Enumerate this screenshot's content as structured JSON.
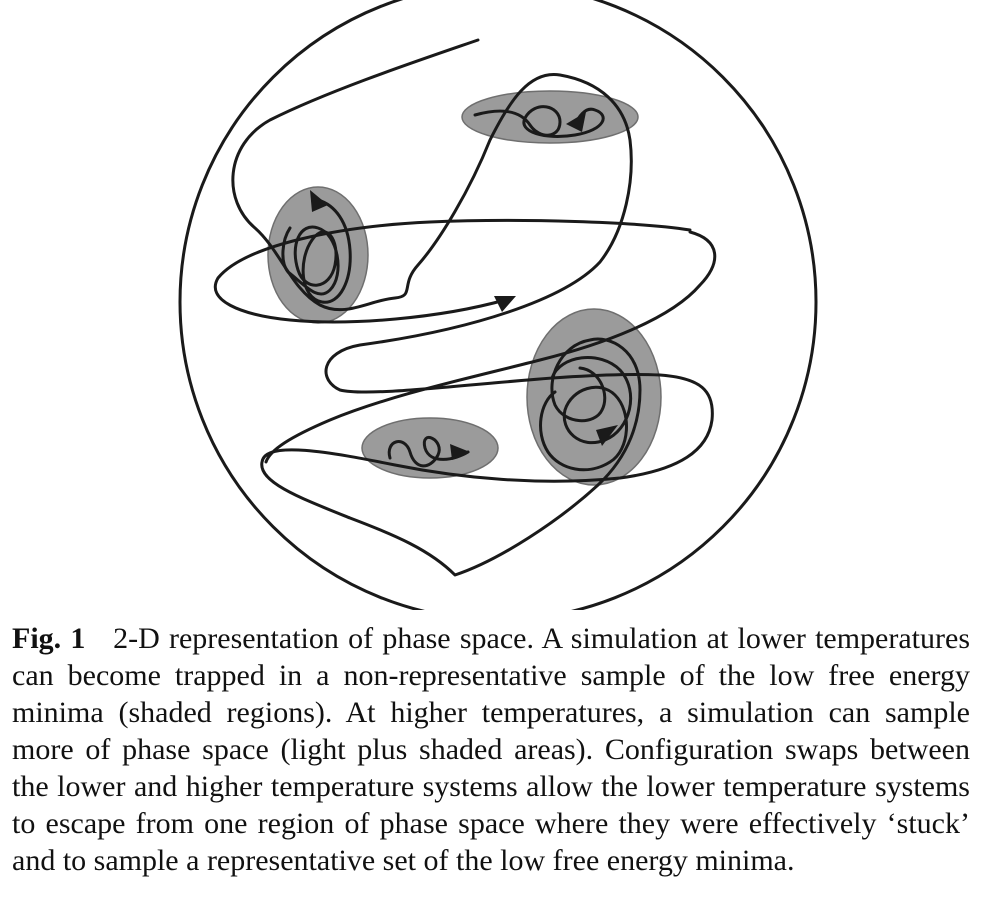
{
  "figure": {
    "label": "Fig. 1",
    "caption": "2-D representation of phase space. A simulation at lower temperatures can become trapped in a non-representative sample of the low free energy minima (shaded regions). At higher temperatures, a simulation can sample more of phase space (light plus shaded areas). Configuration swaps between the lower and higher temperature systems allow the lower temperature systems to escape from one region of phase space where they were effectively ‘stuck’ and to sample a representative set of the low free energy minima."
  },
  "colors": {
    "stroke": "#1a1a1a",
    "shaded_region": "#9b9b9b",
    "background": "#ffffff"
  }
}
